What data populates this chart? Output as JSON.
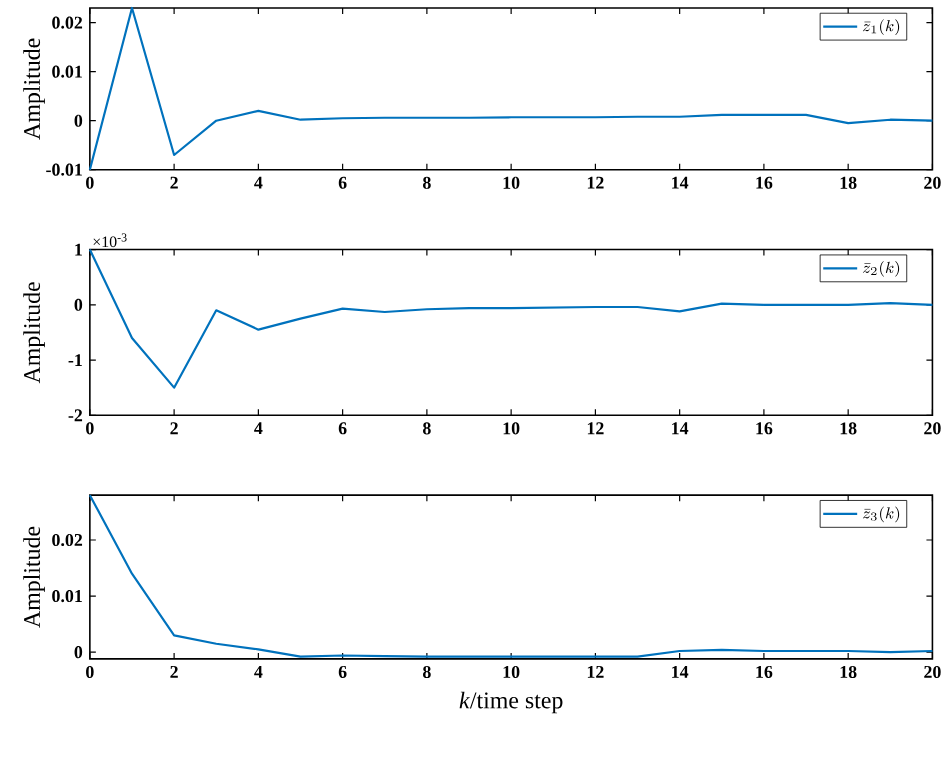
{
  "chart_data": [
    {
      "type": "line",
      "ylabel": "Amplitude",
      "x": [
        0,
        1,
        2,
        3,
        4,
        5,
        6,
        7,
        8,
        9,
        10,
        11,
        12,
        13,
        14,
        15,
        16,
        17,
        18,
        19,
        20
      ],
      "series": [
        {
          "name": "\\bar{z}_1(k)",
          "color": "#0072bd",
          "values": [
            -0.01,
            0.023,
            -0.007,
            0.0,
            0.002,
            0.0002,
            0.0005,
            0.0006,
            0.0006,
            0.0006,
            0.0007,
            0.0007,
            0.0007,
            0.0008,
            0.0008,
            0.0012,
            0.0012,
            0.0012,
            -0.0005,
            0.0002,
            0.0
          ]
        }
      ],
      "xlim": [
        0,
        20
      ],
      "ylim": [
        -0.01,
        0.023
      ],
      "xticks": [
        0,
        2,
        4,
        6,
        8,
        10,
        12,
        14,
        16,
        18,
        20
      ],
      "yticks": [
        -0.01,
        0,
        0.01,
        0.02
      ],
      "legend": "top right",
      "grid": false,
      "marker": "none",
      "line_style": "solid"
    },
    {
      "type": "line",
      "ylabel": "Amplitude",
      "annotations": [
        "×10$^{-3}$"
      ],
      "x": [
        0,
        1,
        2,
        3,
        4,
        5,
        6,
        7,
        8,
        9,
        10,
        11,
        12,
        13,
        14,
        15,
        16,
        17,
        18,
        19,
        20
      ],
      "series": [
        {
          "name": "\\bar{z}_2(k)",
          "color": "#0072bd",
          "values": [
            1.0,
            -0.6,
            -1.5,
            -0.1,
            -0.45,
            -0.25,
            -0.07,
            -0.13,
            -0.08,
            -0.06,
            -0.06,
            -0.05,
            -0.04,
            -0.04,
            -0.12,
            0.02,
            0.0,
            0.0,
            0.0,
            0.03,
            0.0
          ]
        }
      ],
      "xlim": [
        0,
        20
      ],
      "ylim": [
        -2,
        1
      ],
      "xticks": [
        0,
        2,
        4,
        6,
        8,
        10,
        12,
        14,
        16,
        18,
        20
      ],
      "yticks": [
        -2,
        -1,
        0,
        1
      ],
      "legend": "top right",
      "grid": false,
      "marker": "none",
      "line_style": "solid"
    },
    {
      "type": "line",
      "ylabel": "Amplitude",
      "xlabel": "*k*/time step",
      "x": [
        0,
        1,
        2,
        3,
        4,
        5,
        6,
        7,
        8,
        9,
        10,
        11,
        12,
        13,
        14,
        15,
        16,
        17,
        18,
        19,
        20
      ],
      "series": [
        {
          "name": "\\bar{z}_3(k)",
          "color": "#0072bd",
          "values": [
            0.028,
            0.014,
            0.003,
            0.0015,
            0.0005,
            -0.0008,
            -0.0006,
            -0.0007,
            -0.0008,
            -0.0008,
            -0.0008,
            -0.0008,
            -0.0008,
            -0.0008,
            0.0002,
            0.0004,
            0.0002,
            0.0002,
            0.0002,
            0.0,
            0.0002
          ]
        }
      ],
      "xlim": [
        0,
        20
      ],
      "ylim": [
        -0.0012,
        0.028
      ],
      "xticks": [
        0,
        2,
        4,
        6,
        8,
        10,
        12,
        14,
        16,
        18,
        20
      ],
      "yticks": [
        0,
        0.01,
        0.02
      ],
      "legend": "top right",
      "grid": false,
      "marker": "none",
      "line_style": "solid"
    }
  ]
}
